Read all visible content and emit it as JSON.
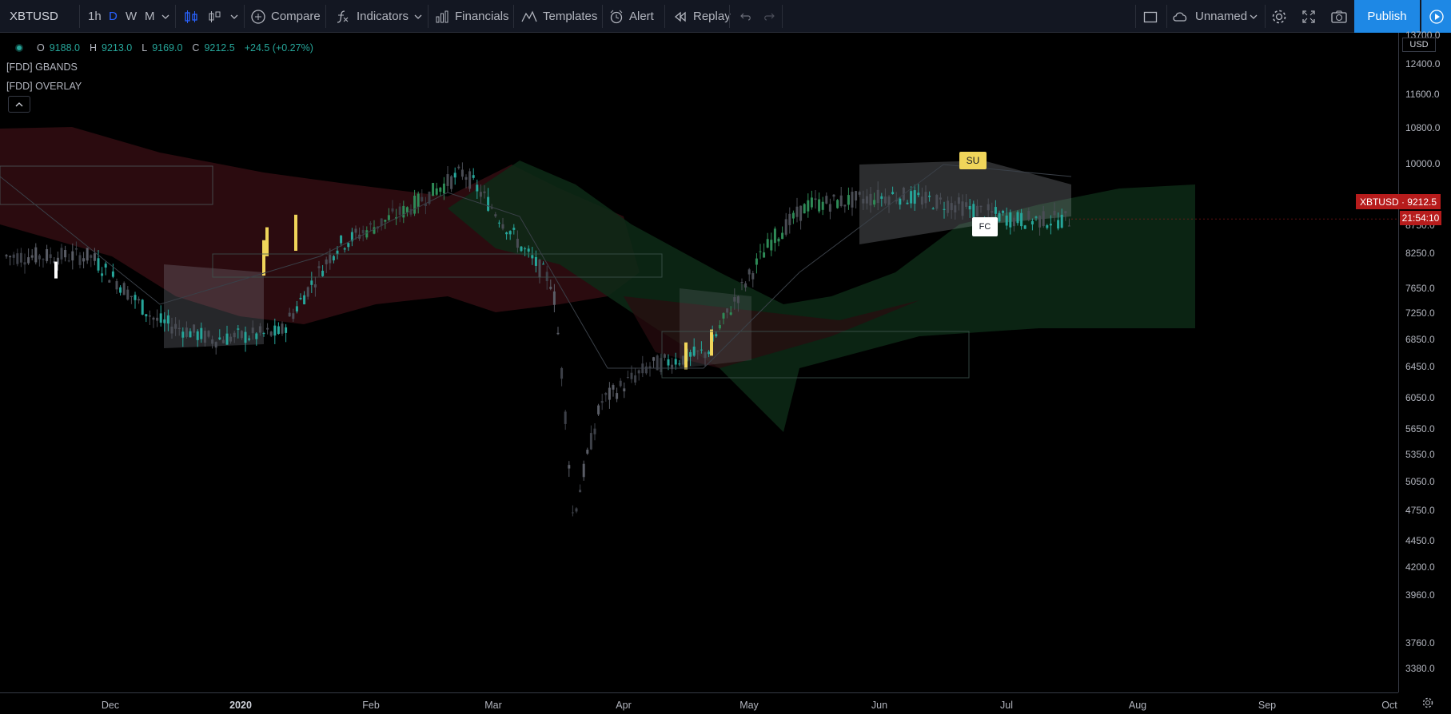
{
  "toolbar": {
    "symbol": "XBTUSD",
    "intervals": [
      "1h",
      "D",
      "W",
      "M"
    ],
    "active_interval": "D",
    "compare": "Compare",
    "indicators": "Indicators",
    "financials": "Financials",
    "templates": "Templates",
    "alert": "Alert",
    "replay": "Replay",
    "layout_name": "Unnamed",
    "publish": "Publish"
  },
  "legend": {
    "o_key": "O",
    "o_val": "9188.0",
    "h_key": "H",
    "h_val": "9213.0",
    "l_key": "L",
    "l_val": "9169.0",
    "c_key": "C",
    "c_val": "9212.5",
    "change": "+24.5 (+0.27%)",
    "indicator1": "[FDD] GBANDS",
    "indicator2": "[FDD] OVERLAY"
  },
  "price_axis": {
    "currency": "USD",
    "labels": [
      "13700.0",
      "12400.0",
      "11600.0",
      "10800.0",
      "10000.0",
      "8750.0",
      "8250.0",
      "7650.0",
      "7250.0",
      "6850.0",
      "6450.0",
      "6050.0",
      "5650.0",
      "5350.0",
      "5050.0",
      "4750.0",
      "4450.0",
      "4200.0",
      "3960.0",
      "3760.0",
      "3380.0"
    ],
    "current_price_tag": "XBTUSD · 9212.5",
    "countdown": "21:54:10"
  },
  "time_axis": {
    "labels": [
      "Dec",
      "2020",
      "Feb",
      "Mar",
      "Apr",
      "May",
      "Jun",
      "Jul",
      "Aug",
      "Sep",
      "Oct"
    ],
    "bold": "2020"
  },
  "markers": {
    "su": "SU",
    "fc": "FC"
  },
  "colors": {
    "bull": "#26a69a",
    "bear": "#ef5350",
    "bg": "#000000",
    "toolbar_bg": "#131722",
    "accent": "#1e88e5",
    "price_tag": "#b71c1c",
    "highlight_bar": "#f0d55a"
  },
  "chart_data": {
    "type": "candlestick",
    "symbol": "XBTUSD",
    "interval": "D",
    "last": {
      "open": 9188.0,
      "high": 9213.0,
      "low": 9169.0,
      "close": 9212.5
    },
    "x": [
      "2019-11-15",
      "2019-12-01",
      "2019-12-15",
      "2020-01-01",
      "2020-01-15",
      "2020-02-01",
      "2020-02-15",
      "2020-03-01",
      "2020-03-08",
      "2020-03-13",
      "2020-03-20",
      "2020-04-01",
      "2020-04-15",
      "2020-05-01",
      "2020-05-10",
      "2020-06-01",
      "2020-06-15",
      "2020-06-30"
    ],
    "close": [
      8500,
      7400,
      7100,
      7200,
      8700,
      9400,
      10200,
      8600,
      8000,
      4800,
      6200,
      6700,
      6900,
      8800,
      9500,
      9700,
      9500,
      9200
    ],
    "ylim": [
      3300,
      13800
    ]
  }
}
